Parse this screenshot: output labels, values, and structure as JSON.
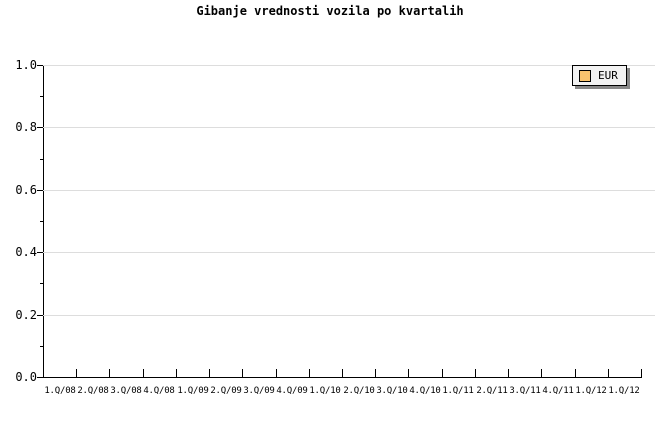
{
  "chart_data": {
    "type": "line",
    "title": "Gibanje vrednosti vozila po kvartalih",
    "xlabel": "",
    "ylabel": "",
    "ylim": [
      0.0,
      1.0
    ],
    "y_major_step": 0.2,
    "y_minor_step": 0.1,
    "y_tick_labels": [
      "0.0",
      "0.2",
      "0.4",
      "0.6",
      "0.8",
      "1.0"
    ],
    "x_tick_labels": [
      "1.Q/08",
      "2.Q/08",
      "3.Q/08",
      "4.Q/08",
      "1.Q/09",
      "2.Q/09",
      "3.Q/09",
      "4.Q/09",
      "1.Q/10",
      "2.Q/10",
      "3.Q/10",
      "4.Q/10",
      "1.Q/11",
      "2.Q/11",
      "3.Q/11",
      "4.Q/11",
      "1.Q/12",
      "1.Q/12"
    ],
    "grid": "horizontal-major",
    "legend": {
      "position": "top-right",
      "entries": [
        {
          "label": "EUR",
          "color": "#FAC46E"
        }
      ]
    },
    "series": [
      {
        "name": "EUR",
        "values": []
      }
    ]
  },
  "colors": {
    "background": "#FFFFFF",
    "axis": "#000000",
    "grid": "#DDDDDD",
    "text": "#000000",
    "legend_bg": "#F2F2F2",
    "legend_border": "#000000",
    "legend_shadow": "#888888",
    "swatch_fill": "#FAC46E"
  }
}
